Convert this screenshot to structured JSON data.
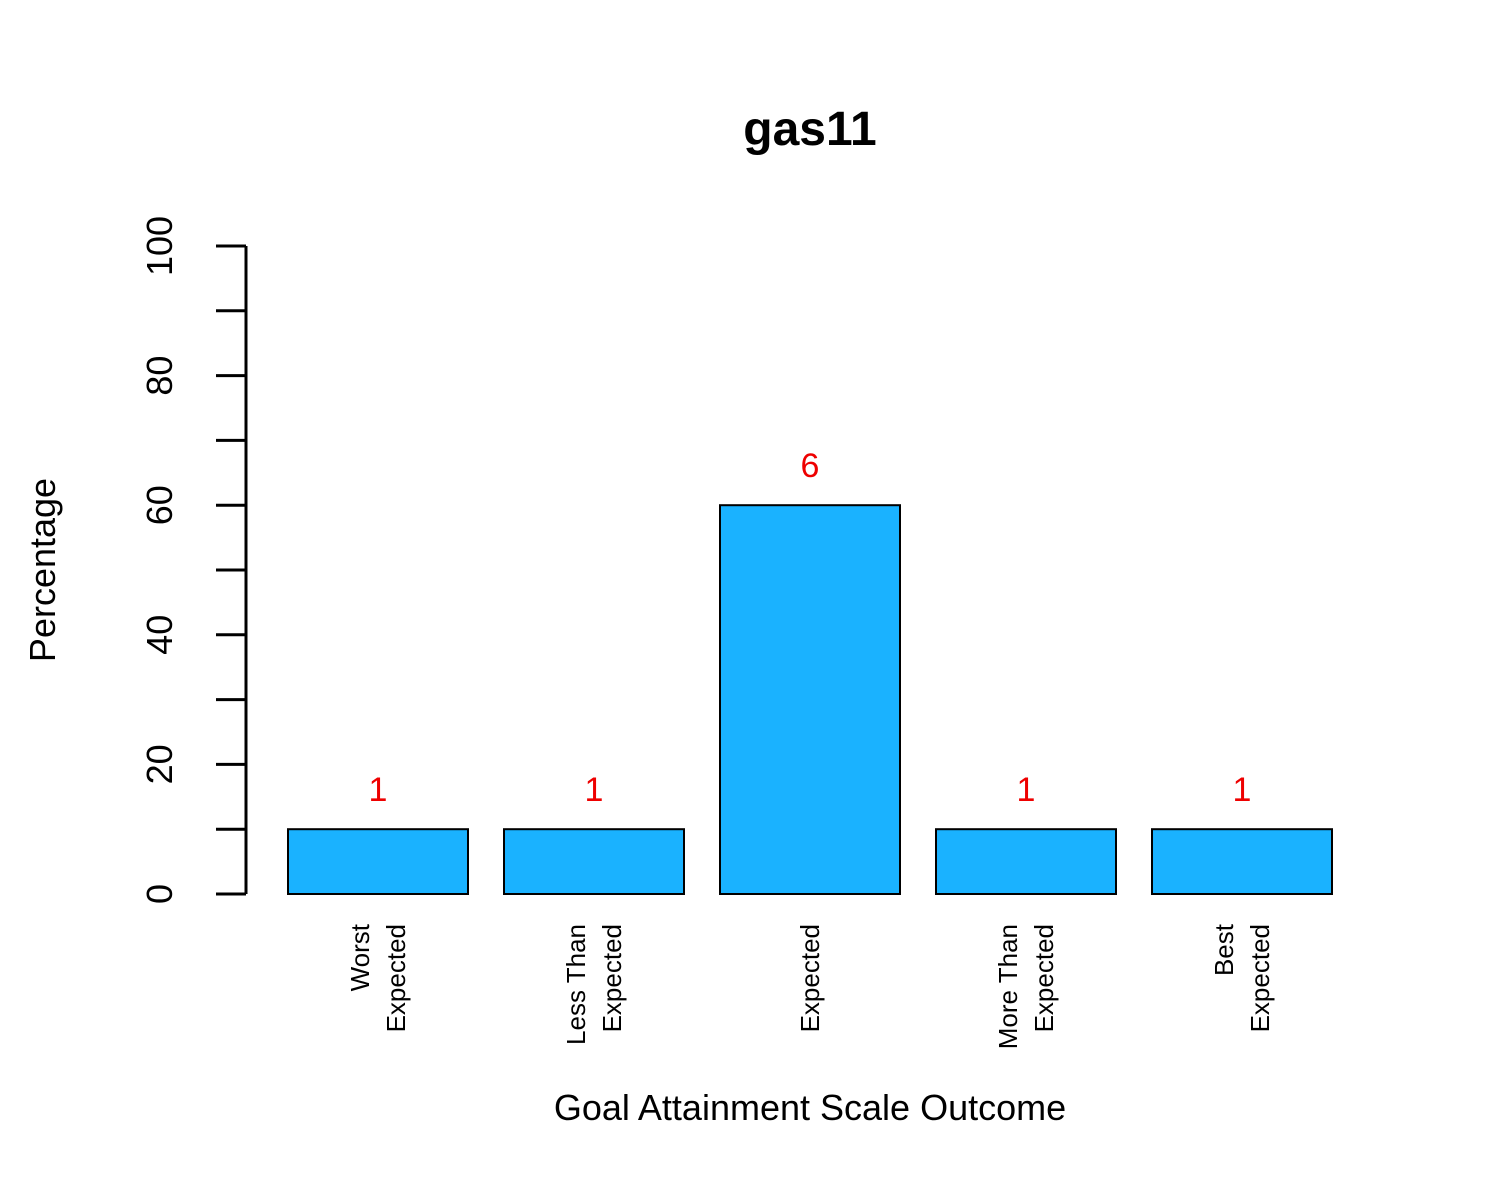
{
  "chart_data": {
    "type": "bar",
    "title": "gas11",
    "xlabel": "Goal Attainment Scale Outcome",
    "ylabel": "Percentage",
    "categories": [
      [
        "Worst",
        "Expected"
      ],
      [
        "Less Than",
        "Expected"
      ],
      [
        "Expected"
      ],
      [
        "More Than",
        "Expected"
      ],
      [
        "Best",
        "Expected"
      ]
    ],
    "values": [
      10,
      10,
      60,
      10,
      10
    ],
    "counts": [
      "1",
      "1",
      "6",
      "1",
      "1"
    ],
    "ylim": [
      0,
      100
    ],
    "y_ticks": [
      0,
      20,
      40,
      60,
      80,
      100
    ],
    "y_minor_ticks": [
      10,
      30,
      50,
      70,
      90
    ],
    "grid": false,
    "legend": "none",
    "bar_color": "#1AB2FF",
    "label_color": "#EE0000"
  }
}
